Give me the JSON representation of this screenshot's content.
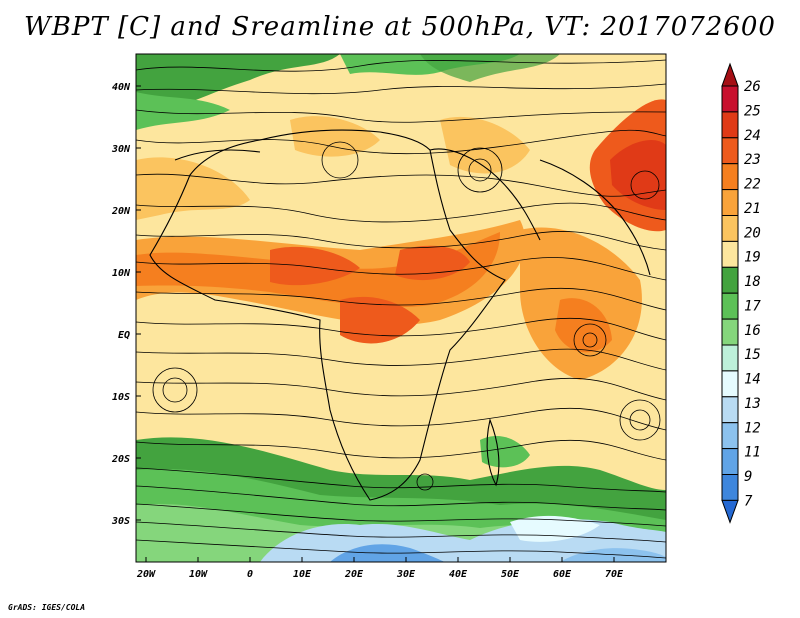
{
  "title": "WBPT [C] and Sreamline at 500hPa, VT: 2017072600",
  "credit": "GrADS: IGES/COLA",
  "map": {
    "lon_ticks": [
      "20W",
      "10W",
      "0",
      "10E",
      "20E",
      "30E",
      "40E",
      "50E",
      "60E",
      "70E"
    ],
    "lat_ticks": [
      "40N",
      "30N",
      "20N",
      "10N",
      "EQ",
      "10S",
      "20S",
      "30S"
    ]
  },
  "colorbar": {
    "levels": [
      "26",
      "25",
      "24",
      "23",
      "22",
      "21",
      "20",
      "19",
      "18",
      "17",
      "16",
      "15",
      "14",
      "13",
      "12",
      "11",
      "9",
      "7"
    ],
    "colors": [
      "#a50f15",
      "#c8102e",
      "#e03a17",
      "#ee5a1c",
      "#f57f1f",
      "#f9a33a",
      "#fbc45f",
      "#fde69e",
      "#43a33f",
      "#5cc157",
      "#85d67c",
      "#bdf0d9",
      "#e6fbff",
      "#b9dbf3",
      "#8cc2ee",
      "#61a4e6",
      "#3e86dc",
      "#2569d3"
    ]
  },
  "legend_fields": {
    "variable": "WBPT [C]",
    "overlay": "Sreamline",
    "level": "500hPa",
    "valid_time": "2017072600"
  }
}
